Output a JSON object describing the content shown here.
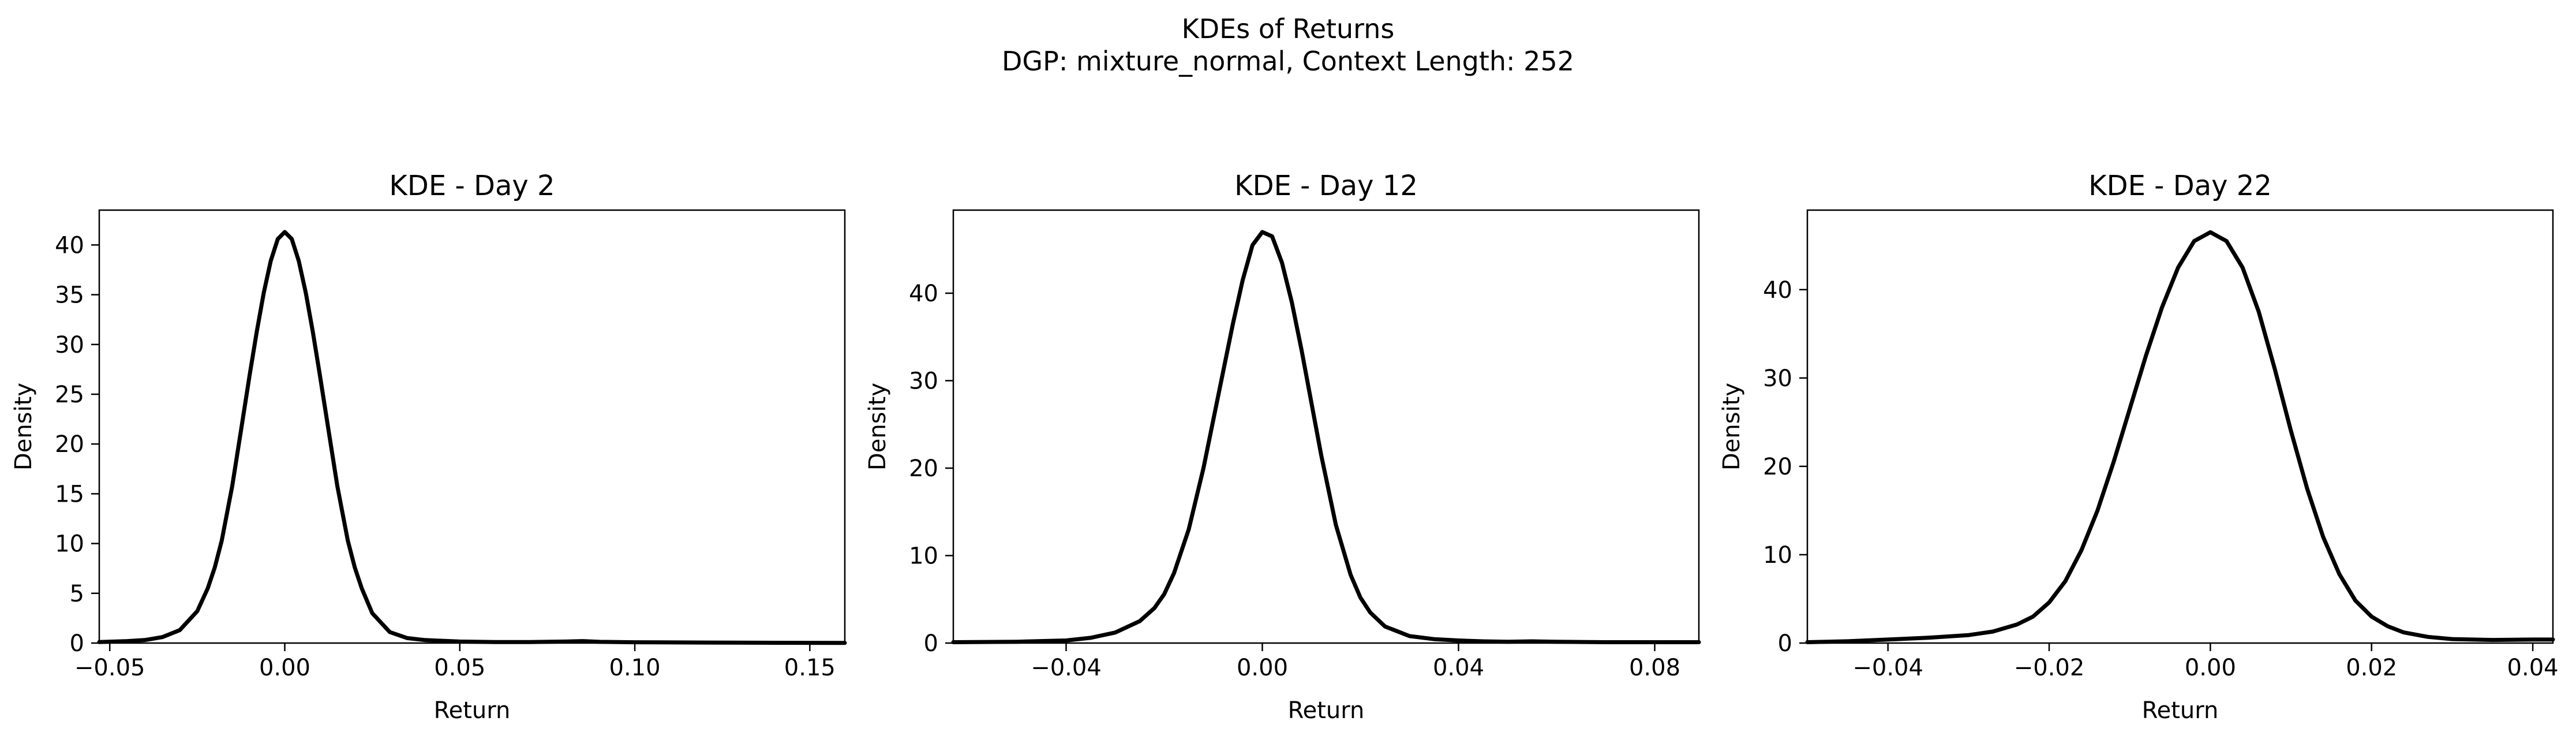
{
  "figure": {
    "title": "KDEs of Returns",
    "subtitle": "DGP: mixture_normal, Context Length: 252"
  },
  "chart_data": [
    {
      "type": "line",
      "title": "KDE - Day 2",
      "xlabel": "Return",
      "ylabel": "Density",
      "xlim": [
        -0.053,
        0.16
      ],
      "ylim": [
        0,
        43.5
      ],
      "xticks": [
        -0.05,
        0.0,
        0.05,
        0.1,
        0.15
      ],
      "xtick_labels": [
        "−0.05",
        "0.00",
        "0.05",
        "0.10",
        "0.15"
      ],
      "yticks": [
        0,
        5,
        10,
        15,
        20,
        25,
        30,
        35,
        40
      ],
      "ytick_labels": [
        "0",
        "5",
        "10",
        "15",
        "20",
        "25",
        "30",
        "35",
        "40"
      ],
      "series": [
        {
          "color": "#000000",
          "x": [
            -0.053,
            -0.045,
            -0.04,
            -0.035,
            -0.03,
            -0.025,
            -0.022,
            -0.02,
            -0.018,
            -0.015,
            -0.012,
            -0.01,
            -0.008,
            -0.006,
            -0.004,
            -0.002,
            0.0,
            0.002,
            0.004,
            0.006,
            0.008,
            0.01,
            0.012,
            0.015,
            0.018,
            0.02,
            0.022,
            0.025,
            0.03,
            0.035,
            0.04,
            0.05,
            0.06,
            0.07,
            0.08,
            0.085,
            0.09,
            0.1,
            0.12,
            0.14,
            0.16
          ],
          "y": [
            0.1,
            0.2,
            0.3,
            0.6,
            1.3,
            3.2,
            5.5,
            7.6,
            10.3,
            15.8,
            22.5,
            27.0,
            31.3,
            35.2,
            38.4,
            40.6,
            41.3,
            40.6,
            38.4,
            35.2,
            31.3,
            27.0,
            22.5,
            15.8,
            10.3,
            7.6,
            5.5,
            3.0,
            1.1,
            0.5,
            0.3,
            0.15,
            0.1,
            0.1,
            0.15,
            0.2,
            0.12,
            0.08,
            0.05,
            0.03,
            0.02
          ]
        }
      ]
    },
    {
      "type": "line",
      "title": "KDE - Day 12",
      "xlabel": "Return",
      "ylabel": "Density",
      "xlim": [
        -0.063,
        0.089
      ],
      "ylim": [
        0,
        49.5
      ],
      "xticks": [
        -0.04,
        0.0,
        0.04,
        0.08
      ],
      "xtick_labels": [
        "−0.04",
        "0.00",
        "0.04",
        "0.08"
      ],
      "yticks": [
        0,
        10,
        20,
        30,
        40
      ],
      "ytick_labels": [
        "0",
        "10",
        "20",
        "30",
        "40"
      ],
      "series": [
        {
          "color": "#000000",
          "x": [
            -0.063,
            -0.05,
            -0.04,
            -0.035,
            -0.03,
            -0.025,
            -0.022,
            -0.02,
            -0.018,
            -0.015,
            -0.012,
            -0.01,
            -0.008,
            -0.006,
            -0.004,
            -0.002,
            0.0,
            0.002,
            0.004,
            0.006,
            0.008,
            0.01,
            0.012,
            0.015,
            0.018,
            0.02,
            0.022,
            0.025,
            0.03,
            0.035,
            0.04,
            0.045,
            0.05,
            0.055,
            0.06,
            0.07,
            0.08,
            0.089
          ],
          "y": [
            0.1,
            0.15,
            0.3,
            0.6,
            1.2,
            2.5,
            4.0,
            5.6,
            8.0,
            13.0,
            20.0,
            25.5,
            31.0,
            36.5,
            41.5,
            45.5,
            47.0,
            46.5,
            43.5,
            39.0,
            33.5,
            27.5,
            21.5,
            13.5,
            7.8,
            5.2,
            3.5,
            1.9,
            0.8,
            0.45,
            0.3,
            0.2,
            0.15,
            0.2,
            0.15,
            0.1,
            0.1,
            0.1
          ]
        }
      ]
    },
    {
      "type": "line",
      "title": "KDE - Day 22",
      "xlabel": "Return",
      "ylabel": "Density",
      "xlim": [
        -0.05,
        0.0425
      ],
      "ylim": [
        0,
        49
      ],
      "xticks": [
        -0.04,
        -0.02,
        0.0,
        0.02,
        0.04
      ],
      "xtick_labels": [
        "−0.04",
        "−0.02",
        "0.00",
        "0.02",
        "0.04"
      ],
      "yticks": [
        0,
        10,
        20,
        30,
        40
      ],
      "ytick_labels": [
        "0",
        "10",
        "20",
        "30",
        "40"
      ],
      "series": [
        {
          "color": "#000000",
          "x": [
            -0.05,
            -0.045,
            -0.04,
            -0.035,
            -0.03,
            -0.027,
            -0.024,
            -0.022,
            -0.02,
            -0.018,
            -0.016,
            -0.014,
            -0.012,
            -0.01,
            -0.008,
            -0.006,
            -0.004,
            -0.002,
            0.0,
            0.002,
            0.004,
            0.006,
            0.008,
            0.01,
            0.012,
            0.014,
            0.016,
            0.018,
            0.02,
            0.022,
            0.024,
            0.027,
            0.03,
            0.035,
            0.04,
            0.0425
          ],
          "y": [
            0.1,
            0.2,
            0.4,
            0.6,
            0.9,
            1.3,
            2.1,
            3.0,
            4.6,
            7.0,
            10.5,
            15.0,
            20.5,
            26.5,
            32.5,
            38.0,
            42.5,
            45.5,
            46.5,
            45.5,
            42.5,
            37.5,
            31.0,
            24.0,
            17.5,
            12.0,
            7.8,
            4.8,
            3.0,
            1.9,
            1.2,
            0.7,
            0.45,
            0.35,
            0.4,
            0.4
          ]
        }
      ]
    }
  ]
}
